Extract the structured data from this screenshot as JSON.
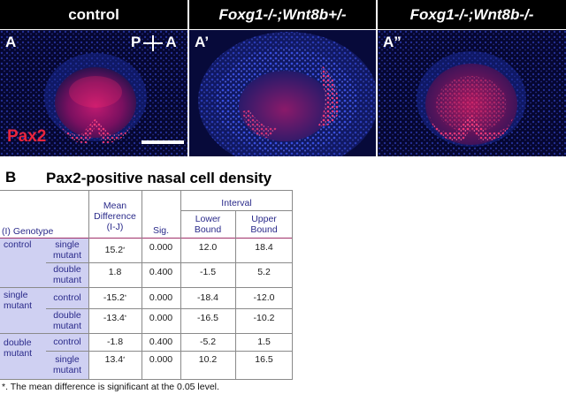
{
  "panels": [
    {
      "header": "control",
      "label": "A",
      "stain": "Pax2",
      "axis_left": "P",
      "axis_right": "A"
    },
    {
      "header": "Foxg1-/-;Wnt8b+/-",
      "label": "A’"
    },
    {
      "header": "Foxg1-/-;Wnt8b-/-",
      "label": "A”"
    }
  ],
  "section": {
    "letter": "B",
    "title": "Pax2-positive nasal cell density"
  },
  "table": {
    "header": {
      "genotype": "(I) Genotype",
      "mean_diff": [
        "Mean",
        "Difference",
        "(I-J)"
      ],
      "sig": "Sig.",
      "interval": "Interval",
      "lower": [
        "Lower",
        "Bound"
      ],
      "upper": [
        "Upper",
        "Bound"
      ]
    },
    "groups": [
      {
        "i": "control",
        "rows": [
          {
            "j": "single mutant",
            "diff": "15.2",
            "star": true,
            "sig": "0.000",
            "lower": "12.0",
            "upper": "18.4"
          },
          {
            "j": "double mutant",
            "diff": "1.8",
            "star": false,
            "sig": "0.400",
            "lower": "-1.5",
            "upper": "5.2"
          }
        ]
      },
      {
        "i": "single mutant",
        "rows": [
          {
            "j": "control",
            "diff": "-15.2",
            "star": true,
            "sig": "0.000",
            "lower": "-18.4",
            "upper": "-12.0"
          },
          {
            "j": "double mutant",
            "diff": "-13.4",
            "star": true,
            "sig": "0.000",
            "lower": "-16.5",
            "upper": "-10.2"
          }
        ]
      },
      {
        "i": "double mutant",
        "rows": [
          {
            "j": "control",
            "diff": "-1.8",
            "star": false,
            "sig": "0.400",
            "lower": "-5.2",
            "upper": "1.5"
          },
          {
            "j": "single mutant",
            "diff": "13.4",
            "star": true,
            "sig": "0.000",
            "lower": "10.2",
            "upper": "16.5"
          }
        ]
      }
    ],
    "star": "*",
    "footnote": "*. The mean difference is significant at the 0.05 level."
  },
  "colors": {
    "nuclei_blue": "#2b3fd8",
    "pax2_red": "#ff2a6a",
    "table_text": "#2a2a8a",
    "row_header_bg": "#cfd0f2"
  }
}
